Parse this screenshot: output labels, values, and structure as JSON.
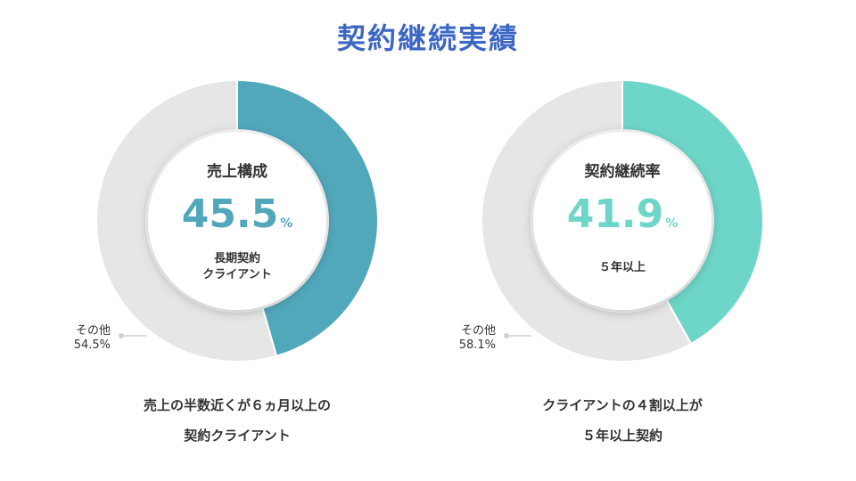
{
  "title": "契約継続実績",
  "chart_data": [
    {
      "type": "pie",
      "center_heading": "売上構成",
      "highlight_value": "45.5",
      "unit": "%",
      "center_sub": [
        "長期契約",
        "クライアント"
      ],
      "slices": [
        {
          "label": "長期契約クライアント",
          "value": 45.5,
          "color": "#52a8bb"
        },
        {
          "label": "その他",
          "value": 54.5,
          "color": "#e6e6e6"
        }
      ],
      "other_label": "その他",
      "other_value": "54.5%",
      "caption": [
        "売上の半数近くが６ヵ月以上の",
        "契約クライアント"
      ]
    },
    {
      "type": "pie",
      "center_heading": "契約継続率",
      "highlight_value": "41.9",
      "unit": "%",
      "center_sub": [
        "５年以上"
      ],
      "slices": [
        {
          "label": "５年以上",
          "value": 41.9,
          "color": "#6ed6c8"
        },
        {
          "label": "その他",
          "value": 58.1,
          "color": "#e6e6e6"
        }
      ],
      "other_label": "その他",
      "other_value": "58.1%",
      "caption": [
        "クライアントの４割以上が",
        "５年以上契約"
      ]
    }
  ]
}
